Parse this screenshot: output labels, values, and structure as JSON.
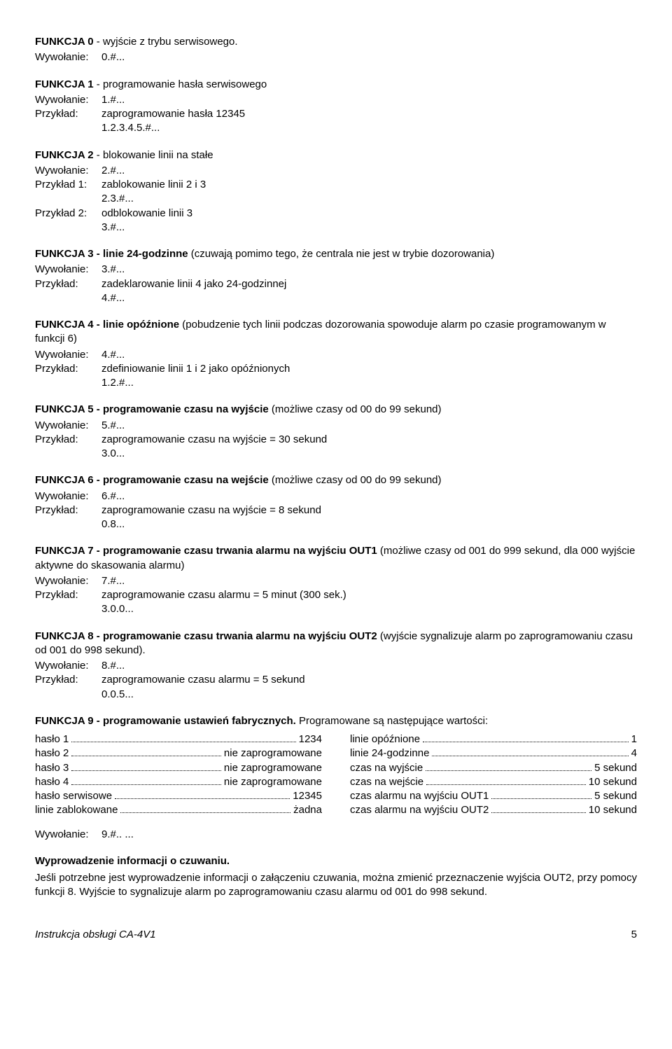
{
  "sections": [
    {
      "head_bold": "FUNKCJA 0",
      "head_rest": " - wyjście z trybu serwisowego.",
      "lines": [
        {
          "label": "Wywołanie:",
          "value": "0.#..."
        }
      ]
    },
    {
      "head_bold": "FUNKCJA 1",
      "head_rest": " - programowanie hasła serwisowego",
      "lines": [
        {
          "label": "Wywołanie:",
          "value": "1.#..."
        },
        {
          "label": "Przykład:",
          "value": "zaprogramowanie hasła 12345"
        },
        {
          "indent": "1.2.3.4.5.#..."
        }
      ]
    },
    {
      "head_bold": "FUNKCJA 2",
      "head_rest": " - blokowanie linii na stałe",
      "lines": [
        {
          "label": "Wywołanie:",
          "value": "2.#..."
        },
        {
          "label": "Przykład 1:",
          "value": "zablokowanie linii 2 i 3"
        },
        {
          "indent": "2.3.#..."
        },
        {
          "label": "Przykład 2:",
          "value": "odblokowanie linii 3"
        },
        {
          "indent": "3.#..."
        }
      ]
    },
    {
      "head_bold": "FUNKCJA 3 - linie 24-godzinne",
      "head_rest": " (czuwają pomimo tego, że centrala nie jest w trybie dozorowania)",
      "lines": [
        {
          "label": "Wywołanie:",
          "value": "3.#..."
        },
        {
          "label": "Przykład:",
          "value": "zadeklarowanie linii 4 jako 24-godzinnej"
        },
        {
          "indent": "4.#..."
        }
      ]
    },
    {
      "head_bold": "FUNKCJA 4 - linie opóźnione",
      "head_rest": " (pobudzenie tych linii podczas dozorowania spowoduje alarm po czasie programowanym w funkcji 6)",
      "lines": [
        {
          "label": "Wywołanie:",
          "value": "4.#..."
        },
        {
          "label": "Przykład:",
          "value": "zdefiniowanie linii 1 i 2 jako opóźnionych"
        },
        {
          "indent": "1.2.#..."
        }
      ]
    },
    {
      "head_bold": "FUNKCJA 5 - programowanie czasu na wyjście",
      "head_rest": " (możliwe czasy od 00 do 99 sekund)",
      "lines": [
        {
          "label": "Wywołanie:",
          "value": "5.#..."
        },
        {
          "label": "Przykład:",
          "value": "zaprogramowanie czasu na wyjście = 30 sekund"
        },
        {
          "indent": "3.0..."
        }
      ]
    },
    {
      "head_bold": "FUNKCJA 6 - programowanie czasu na wejście",
      "head_rest": " (możliwe czasy od 00 do 99 sekund)",
      "lines": [
        {
          "label": "Wywołanie:",
          "value": "6.#..."
        },
        {
          "label": "Przykład:",
          "value": "zaprogramowanie czasu na wyjście = 8 sekund"
        },
        {
          "indent": "0.8..."
        }
      ]
    },
    {
      "head_bold": "FUNKCJA 7 - programowanie czasu trwania alarmu na wyjściu OUT1",
      "head_rest": " (możliwe czasy od 001 do 999 sekund, dla 000 wyjście aktywne do skasowania alarmu)",
      "lines": [
        {
          "label": "Wywołanie:",
          "value": "7.#..."
        },
        {
          "label": "Przykład:",
          "value": "zaprogramowanie czasu alarmu = 5 minut (300 sek.)"
        },
        {
          "indent": "3.0.0..."
        }
      ]
    },
    {
      "head_bold": "FUNKCJA 8 - programowanie czasu trwania alarmu na wyjściu OUT2",
      "head_rest": " (wyjście sygnalizuje alarm po zaprogramowaniu czasu od 001 do 998 sekund).",
      "lines": [
        {
          "label": "Wywołanie:",
          "value": "8.#..."
        },
        {
          "label": "Przykład:",
          "value": "zaprogramowanie czasu alarmu = 5 sekund"
        },
        {
          "indent": "0.0.5..."
        }
      ]
    }
  ],
  "func9": {
    "head_bold": "FUNKCJA 9 - programowanie ustawień fabrycznych.",
    "head_rest": "  Programowane są następujące wartości:",
    "left": [
      {
        "lead": "hasło 1",
        "tail": "1234"
      },
      {
        "lead": "hasło 2",
        "tail": "nie zaprogramowane"
      },
      {
        "lead": "hasło 3",
        "tail": "nie zaprogramowane"
      },
      {
        "lead": "hasło 4",
        "tail": "nie zaprogramowane"
      },
      {
        "lead": "hasło serwisowe",
        "tail": "12345"
      },
      {
        "lead": "linie zablokowane",
        "tail": "żadna"
      }
    ],
    "right": [
      {
        "lead": "linie opóźnione",
        "tail": "1"
      },
      {
        "lead": "linie 24-godzinne",
        "tail": "4"
      },
      {
        "lead": "czas na wyjście",
        "tail": "5 sekund"
      },
      {
        "lead": "czas na wejście",
        "tail": "10 sekund"
      },
      {
        "lead": "czas alarmu na wyjściu OUT1",
        "tail": "5 sekund"
      },
      {
        "lead": "czas alarmu na wyjściu OUT2",
        "tail": "10 sekund"
      }
    ],
    "call_label": "Wywołanie:",
    "call_value": "9.#..  ..."
  },
  "outro": {
    "head": "Wyprowadzenie informacji o czuwaniu.",
    "text": "Jeśli potrzebne jest wyprowadzenie informacji o załączeniu czuwania, można zmienić przeznaczenie wyjścia OUT2, przy pomocy funkcji 8. Wyjście to sygnalizuje alarm po zaprogramowaniu czasu alarmu od 001 do 998 sekund."
  },
  "footer": {
    "title": "Instrukcja obsługi CA-4V1",
    "page": "5"
  }
}
